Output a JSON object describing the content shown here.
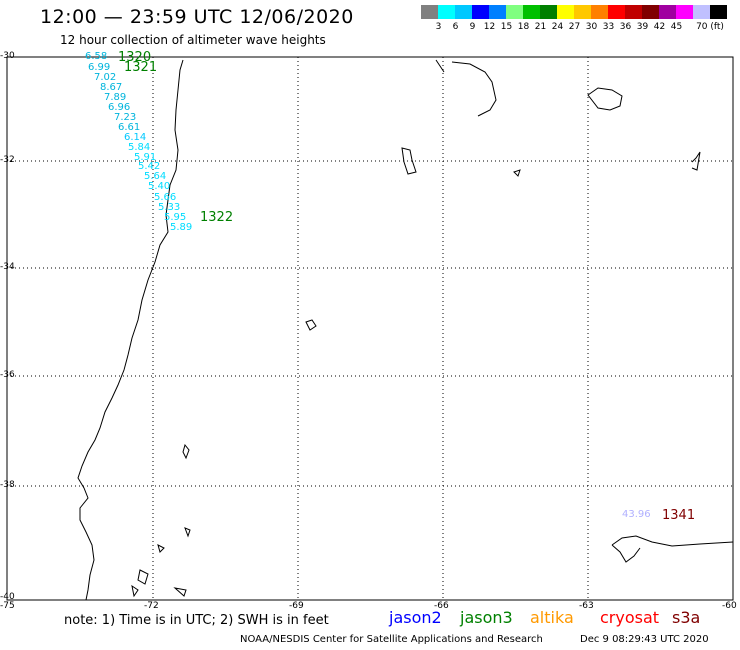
{
  "title": "12:00 — 23:59 UTC 12/06/2020",
  "subtitle": "12 hour collection of altimeter wave heights",
  "colorbar": {
    "colors": [
      "#808080",
      "#00ffff",
      "#00c8ff",
      "#0000ff",
      "#0080ff",
      "#80ff80",
      "#00c000",
      "#008000",
      "#ffff00",
      "#ffc800",
      "#ff8000",
      "#ff0000",
      "#c00000",
      "#800000",
      "#a000a0",
      "#ff00ff",
      "#c0c0ff",
      "#000000"
    ],
    "ticks": [
      "3",
      "6",
      "9",
      "12",
      "15",
      "18",
      "21",
      "24",
      "27",
      "30",
      "33",
      "36",
      "39",
      "42",
      "45",
      "70 (ft)"
    ]
  },
  "map": {
    "lat_labels": [
      "-30",
      "-32",
      "-34",
      "-36",
      "-38",
      "-40"
    ],
    "lon_labels": [
      "-75",
      "-72",
      "-69",
      "-66",
      "-63",
      "-60"
    ]
  },
  "observations": [
    {
      "value": "6.58",
      "color": "#00b4dc"
    },
    {
      "value": "6.99",
      "color": "#00b4dc"
    },
    {
      "value": "7.02",
      "color": "#00b4dc"
    },
    {
      "value": "8.67",
      "color": "#00b4dc"
    },
    {
      "value": "7.89",
      "color": "#00b4dc"
    },
    {
      "value": "6.96",
      "color": "#00b4dc"
    },
    {
      "value": "7.23",
      "color": "#00b4dc"
    },
    {
      "value": "6.61",
      "color": "#00b4dc"
    },
    {
      "value": "6.14",
      "color": "#00c8ff"
    },
    {
      "value": "5.84",
      "color": "#00dcff"
    },
    {
      "value": "5.91",
      "color": "#00dcff"
    },
    {
      "value": "5.42",
      "color": "#00dcff"
    },
    {
      "value": "5.64",
      "color": "#00dcff"
    },
    {
      "value": "5.40",
      "color": "#00dcff"
    },
    {
      "value": "5.66",
      "color": "#00dcff"
    },
    {
      "value": "5.33",
      "color": "#00dcff"
    },
    {
      "value": "5.95",
      "color": "#00dcff"
    },
    {
      "value": "5.89",
      "color": "#00dcff"
    },
    {
      "value": "43.96",
      "color": "#b0b0ff"
    }
  ],
  "time_labels": [
    {
      "value": "1320",
      "color": "#008000"
    },
    {
      "value": "1321",
      "color": "#008000"
    },
    {
      "value": "1322",
      "color": "#008000"
    },
    {
      "value": "1341",
      "color": "#800000"
    }
  ],
  "footer": {
    "note": "note:  1) Time is in UTC;  2) SWH is in feet",
    "satellites": [
      {
        "name": "jason2",
        "color": "#0000ff"
      },
      {
        "name": "jason3",
        "color": "#008000"
      },
      {
        "name": "altika",
        "color": "#ff9900"
      },
      {
        "name": "cryosat",
        "color": "#ff0000"
      },
      {
        "name": "s3a",
        "color": "#800000"
      }
    ],
    "credit": "NOAA/NESDIS Center for Satellite Applications and Research",
    "timestamp": "Dec  9 08:29:43 UTC 2020"
  }
}
